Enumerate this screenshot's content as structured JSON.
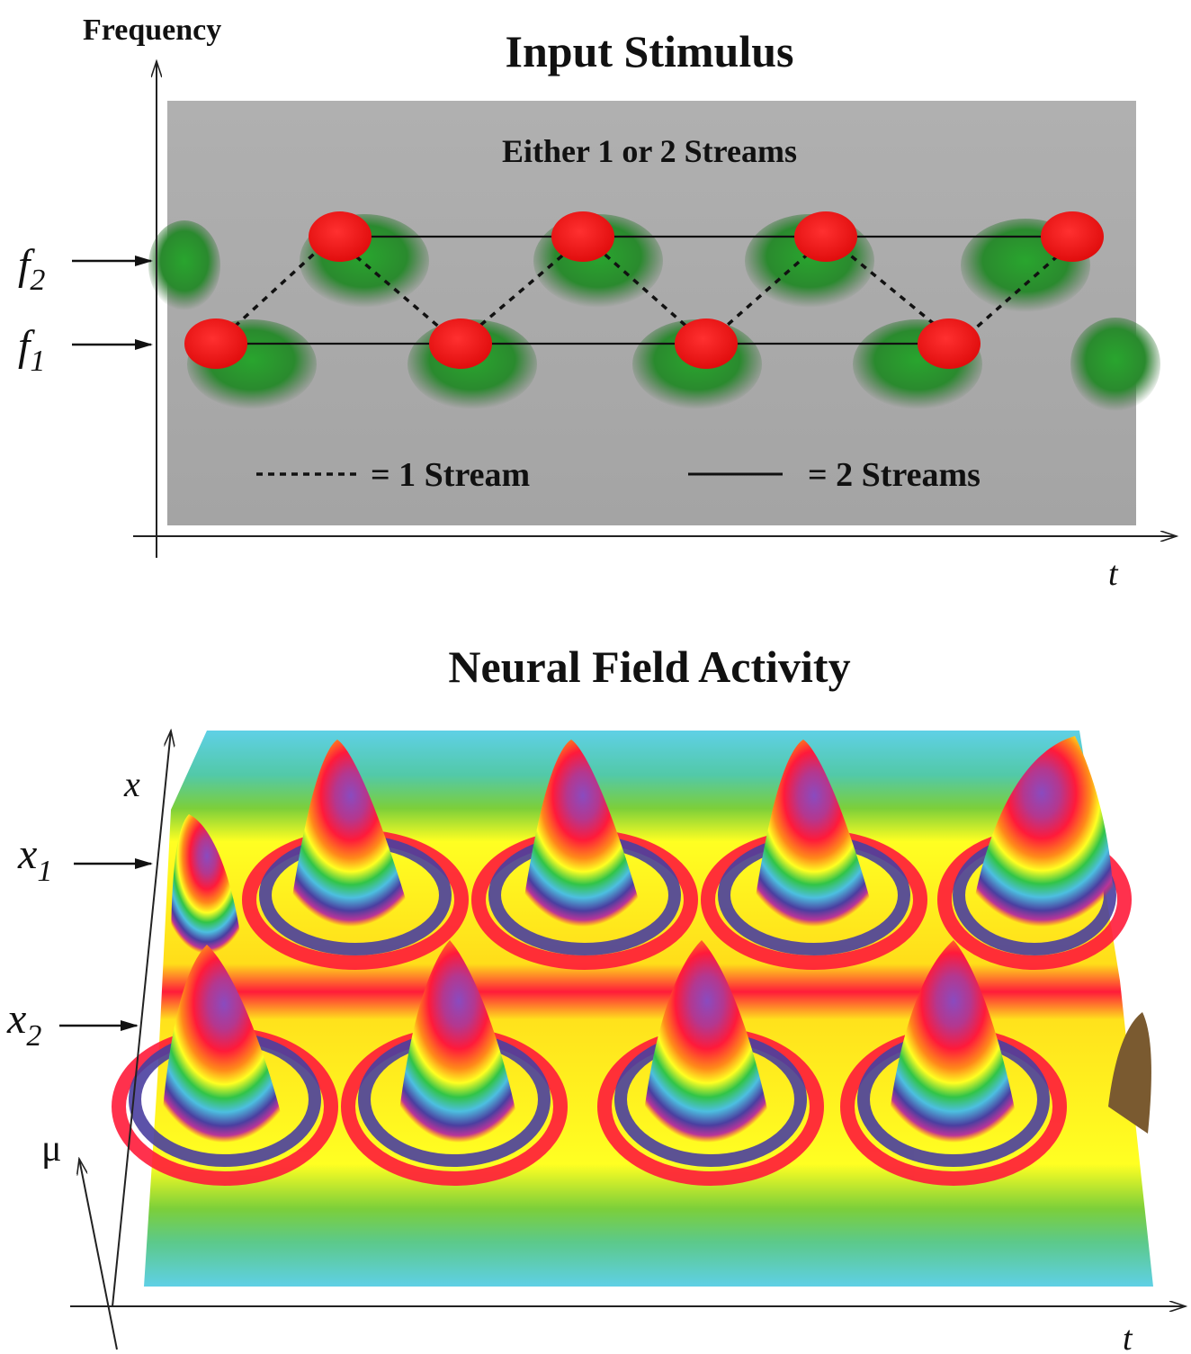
{
  "top_panel": {
    "y_axis_label": "Frequency",
    "title": "Input Stimulus",
    "subtitle": "Either 1 or 2 Streams",
    "f2_main": "f",
    "f2_sub": "2",
    "f1_main": "f",
    "f1_sub": "1",
    "t_label": "t",
    "legend_dashed_text": "= 1 Stream",
    "legend_solid_text": "= 2 Streams",
    "colors": {
      "background": "#a7a7a7",
      "tone": "#ff1f1f",
      "tone_shadow": "#2f9a2f"
    }
  },
  "bottom_panel": {
    "title": "Neural Field Activity",
    "x_label": "x",
    "x1_main": "x",
    "x1_sub": "1",
    "x2_main": "x",
    "x2_sub": "2",
    "mu_label": "μ",
    "t_label": "t",
    "colors": {
      "cyan": "#5fd0e6",
      "green": "#33c54a",
      "yellow": "#ffff22",
      "red": "#ff1b3a",
      "purple": "#7a4ea6"
    }
  }
}
